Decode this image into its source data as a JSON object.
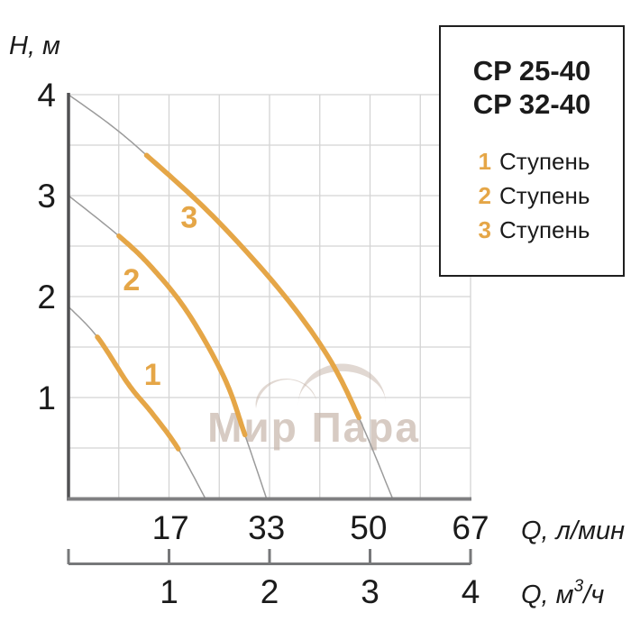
{
  "y_axis": {
    "label": "H, м",
    "ticks": [
      "4",
      "3",
      "2",
      "1"
    ]
  },
  "x_axis_primary": {
    "unit": "Q, л/мин",
    "ticks": [
      "17",
      "33",
      "50",
      "67"
    ]
  },
  "x_axis_secondary": {
    "unit_main": "Q, м",
    "unit_sup": "3",
    "unit_tail": "/ч",
    "ticks": [
      "1",
      "2",
      "3",
      "4"
    ]
  },
  "legend": {
    "models": [
      "CP 25-40",
      "CP 32-40"
    ],
    "items": [
      {
        "num": "1",
        "label": "Ступень"
      },
      {
        "num": "2",
        "label": "Ступень"
      },
      {
        "num": "3",
        "label": "Ступень"
      }
    ]
  },
  "watermark": {
    "text": "Мир Пара"
  },
  "colors": {
    "accent_orange": "#E5A647",
    "curve_gray": "#9B9B9B",
    "grid": "#D4D4D4",
    "axis_dark": "#515153",
    "axis_gray": "#7F7F81",
    "text": "#1B1B1B",
    "watermark": "#C4B2A6"
  },
  "chart_data": {
    "type": "line",
    "ylabel": "H, м",
    "xlabel_primary": "Q, л/мин",
    "xlabel_secondary": "Q, м³/ч",
    "ylim": [
      0,
      4
    ],
    "xlim_lmin": [
      0,
      67
    ],
    "xlim_m3h": [
      0,
      4
    ],
    "grid": "on",
    "grid_cells": 8,
    "y_tick_values": [
      4,
      3,
      2,
      1
    ],
    "x_tick_values_lmin": [
      17,
      33,
      50,
      67
    ],
    "x_tick_values_m3h": [
      1,
      2,
      3,
      4
    ],
    "legend_position": "top-right box",
    "series": [
      {
        "name": "1 Ступень",
        "curve_label": "1",
        "points_q_lmin_h_m": [
          [
            0,
            1.9
          ],
          [
            4.8,
            1.6
          ],
          [
            10,
            1.13
          ],
          [
            14,
            0.84
          ],
          [
            18.3,
            0.49
          ],
          [
            22.8,
            0
          ]
        ],
        "highlight_q_range": [
          4.8,
          18.3
        ],
        "label_pos": [
          14.0,
          1.23
        ]
      },
      {
        "name": "2 Ступень",
        "curve_label": "2",
        "points_q_lmin_h_m": [
          [
            0,
            3.0
          ],
          [
            8.4,
            2.6
          ],
          [
            14,
            2.28
          ],
          [
            20,
            1.83
          ],
          [
            26,
            1.19
          ],
          [
            29.4,
            0.63
          ],
          [
            33,
            0
          ]
        ],
        "highlight_q_range": [
          8.4,
          29.4
        ],
        "label_pos": [
          10.5,
          2.17
        ]
      },
      {
        "name": "3 Ступень",
        "curve_label": "3",
        "points_q_lmin_h_m": [
          [
            0,
            4.0
          ],
          [
            7,
            3.7
          ],
          [
            13,
            3.4
          ],
          [
            24,
            2.8
          ],
          [
            35,
            2.08
          ],
          [
            43,
            1.43
          ],
          [
            48.4,
            0.8
          ],
          [
            54,
            0
          ]
        ],
        "highlight_q_range": [
          13,
          48.4
        ],
        "label_pos": [
          20.1,
          2.79
        ]
      }
    ]
  }
}
